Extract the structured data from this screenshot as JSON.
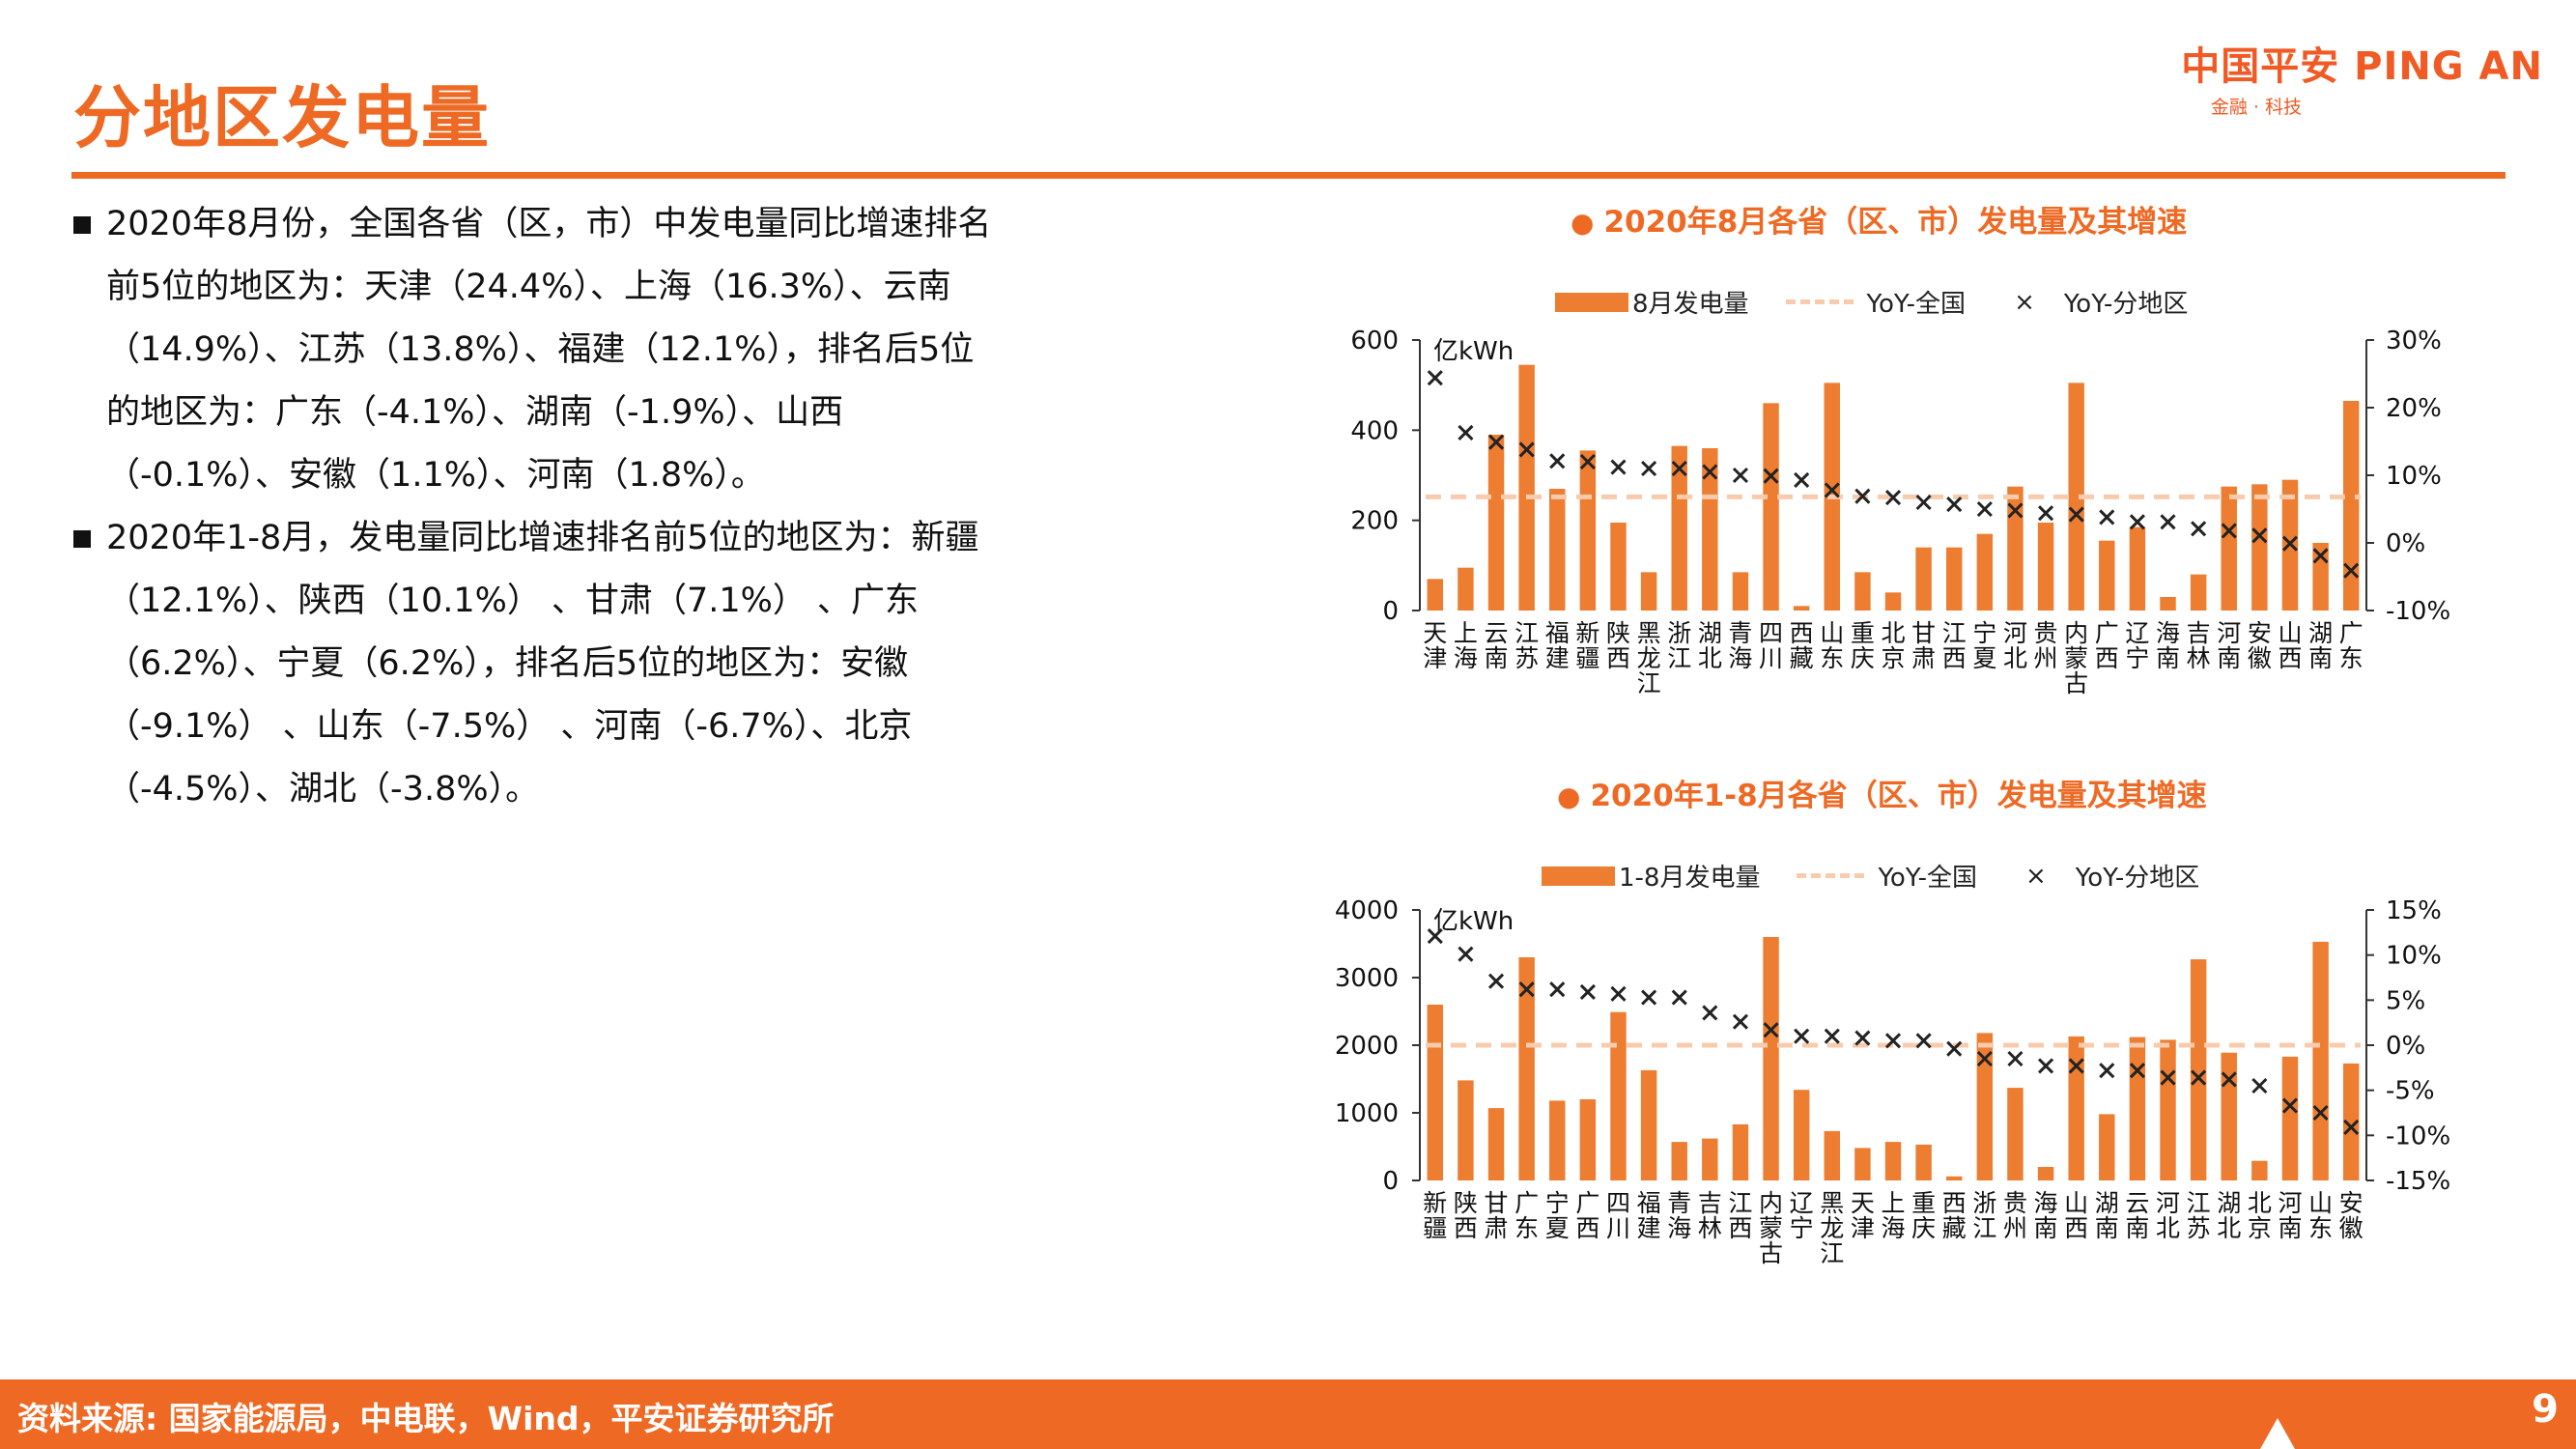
{
  "header": {
    "title": "分地区发电量",
    "logo": "中国平安 PING AN",
    "logo_sub": "金融 · 科技"
  },
  "bullets": [
    "2020年8月份，全国各省（区，市）中发电量同比增速排名前5位的地区为：天津（24.4%）、上海（16.3%）、云南（14.9%）、江苏（13.8%）、福建（12.1%），排名后5位的地区为：广东（-4.1%）、湖南（-1.9%）、山西（-0.1%）、安徽（1.1%）、河南（1.8%）。",
    "2020年1-8月，发电量同比增速排名前5位的地区为：新疆（12.1%）、陕西（10.1%） 、甘肃（7.1%） 、广东（6.2%）、宁夏（6.2%），排名后5位的地区为：安徽（-9.1%） 、山东（-7.5%） 、河南（-6.7%）、北京（-4.5%）、湖北（-3.8%）。"
  ],
  "footer": {
    "source": "资料来源: 国家能源局，中电联，Wind，平安证券研究所",
    "page": "9"
  },
  "colors": {
    "accent": "#ee6a24",
    "bar": "#ed7d31",
    "national_line": "#f8cbad",
    "marker": "#222222"
  },
  "chart_data": [
    {
      "type": "bar",
      "title": "2020年8月各省（区、市）发电量及其增速",
      "legend": [
        "8月发电量",
        "YoY-全国",
        "YoY-分地区"
      ],
      "unit_label": "亿kWh",
      "categories": [
        "天津",
        "上海",
        "云南",
        "江苏",
        "福建",
        "新疆",
        "陕西",
        "黑龙江",
        "浙江",
        "湖北",
        "青海",
        "四川",
        "西藏",
        "山东",
        "重庆",
        "北京",
        "甘肃",
        "江西",
        "宁夏",
        "河北",
        "贵州",
        "内蒙古",
        "广西",
        "辽宁",
        "海南",
        "吉林",
        "河南",
        "安徽",
        "山西",
        "湖南",
        "广东"
      ],
      "values": [
        70,
        95,
        390,
        545,
        270,
        355,
        195,
        85,
        365,
        360,
        85,
        460,
        10,
        505,
        85,
        40,
        140,
        140,
        170,
        275,
        195,
        505,
        155,
        185,
        30,
        80,
        275,
        280,
        290,
        150,
        465
      ],
      "yoy": [
        24.4,
        16.3,
        14.9,
        13.8,
        12.1,
        12.0,
        11.2,
        11.0,
        11.0,
        10.5,
        10.0,
        9.9,
        9.3,
        7.8,
        6.9,
        6.7,
        6.0,
        5.7,
        5.0,
        4.8,
        4.4,
        4.2,
        3.8,
        3.1,
        3.1,
        2.1,
        1.8,
        1.1,
        -0.1,
        -1.9,
        -4.1
      ],
      "yoy_national": 6.8,
      "ylim_left": [
        0,
        600
      ],
      "yticks_left": [
        "0",
        "200",
        "400",
        "600"
      ],
      "ylim_right": [
        -10,
        30
      ],
      "yticks_right": [
        "-10%",
        "0%",
        "10%",
        "20%",
        "30%"
      ]
    },
    {
      "type": "bar",
      "title": "2020年1-8月各省（区、市）发电量及其增速",
      "legend": [
        "1-8月发电量",
        "YoY-全国",
        "YoY-分地区"
      ],
      "unit_label": "亿kWh",
      "categories": [
        "新疆",
        "陕西",
        "甘肃",
        "广东",
        "宁夏",
        "广西",
        "四川",
        "福建",
        "青海",
        "吉林",
        "江西",
        "内蒙古",
        "辽宁",
        "黑龙江",
        "天津",
        "上海",
        "重庆",
        "西藏",
        "浙江",
        "贵州",
        "海南",
        "山西",
        "湖南",
        "云南",
        "河北",
        "江苏",
        "湖北",
        "北京",
        "河南",
        "山东",
        "安徽"
      ],
      "values": [
        2600,
        1480,
        1070,
        3300,
        1180,
        1200,
        2490,
        1630,
        570,
        620,
        830,
        3600,
        1340,
        730,
        480,
        570,
        530,
        60,
        2180,
        1370,
        200,
        2130,
        980,
        2120,
        2080,
        3270,
        1890,
        290,
        1830,
        3530,
        1730
      ],
      "yoy": [
        12.1,
        10.1,
        7.1,
        6.2,
        6.2,
        5.9,
        5.7,
        5.3,
        5.3,
        3.6,
        2.6,
        1.7,
        1.0,
        1.0,
        0.8,
        0.5,
        0.5,
        -0.4,
        -1.5,
        -1.5,
        -2.3,
        -2.3,
        -2.8,
        -2.8,
        -3.6,
        -3.6,
        -3.8,
        -4.5,
        -6.7,
        -7.5,
        -9.1
      ],
      "yoy_national": 0,
      "ylim_left": [
        0,
        4000
      ],
      "yticks_left": [
        "0",
        "1000",
        "2000",
        "3000",
        "4000"
      ],
      "ylim_right": [
        -15,
        15
      ],
      "yticks_right": [
        "-15%",
        "-10%",
        "-5%",
        "0%",
        "5%",
        "10%",
        "15%"
      ]
    }
  ]
}
